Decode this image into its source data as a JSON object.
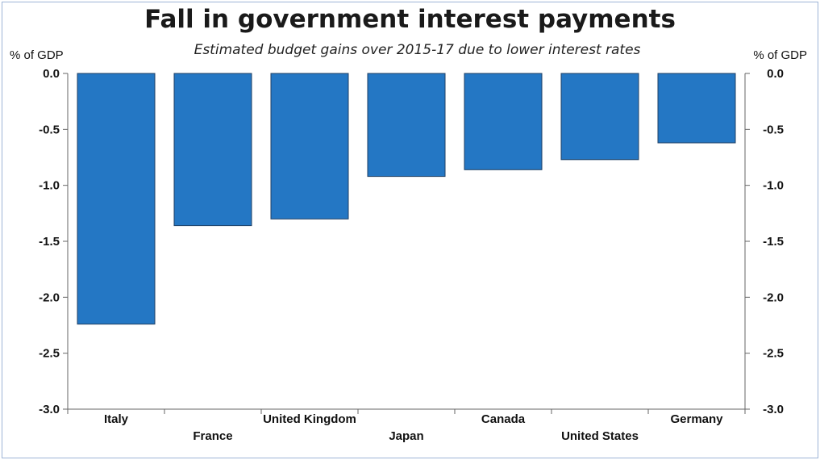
{
  "chart_data": {
    "type": "bar",
    "title": "Fall in government interest payments",
    "subtitle": "Estimated budget gains over 2015-17 due to lower interest rates",
    "ylabel_left": "% of GDP",
    "ylabel_right": "% of GDP",
    "categories": [
      "Italy",
      "France",
      "United Kingdom",
      "Japan",
      "Canada",
      "United States",
      "Germany"
    ],
    "values": [
      -2.24,
      -1.36,
      -1.3,
      -0.92,
      -0.86,
      -0.77,
      -0.62
    ],
    "ylim": [
      -3.0,
      0.0
    ],
    "yticks": [
      "0.0",
      "-0.5",
      "-1.0",
      "-1.5",
      "-2.0",
      "-2.5",
      "-3.0"
    ],
    "ytick_values": [
      0.0,
      -0.5,
      -1.0,
      -1.5,
      -2.0,
      -2.5,
      -3.0
    ],
    "bar_color": "#2477c4",
    "bar_edge_color": "#1f3f63",
    "grid": false,
    "legend": "none"
  }
}
